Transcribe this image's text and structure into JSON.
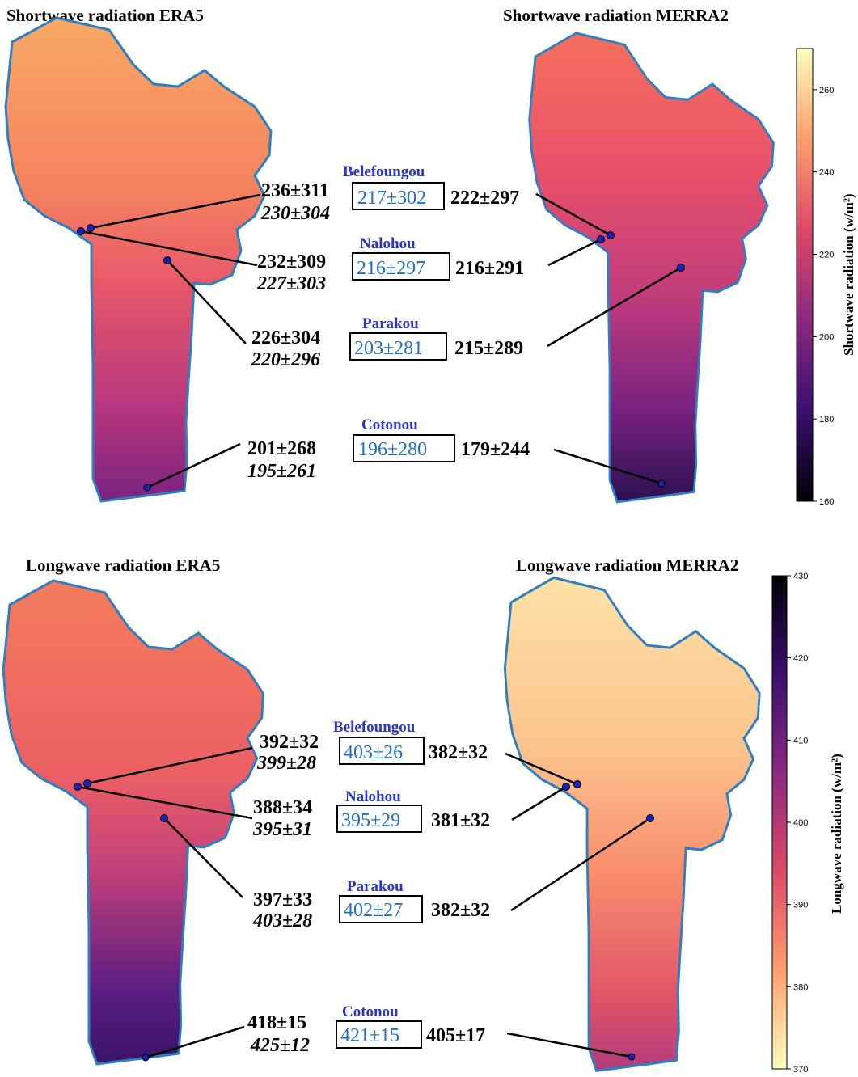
{
  "panels": {
    "sw_era5": {
      "title": "Shortwave radiation ERA5"
    },
    "sw_merra2": {
      "title": "Shortwave radiation MERRA2"
    },
    "lw_era5": {
      "title": "Longwave radiation ERA5"
    },
    "lw_merra2": {
      "title": "Longwave radiation MERRA2"
    }
  },
  "colorbars": {
    "shortwave": {
      "label": "Shortwave radiation (w/m²)",
      "min": 160,
      "max": 270,
      "ticks": [
        "260",
        "240",
        "220",
        "200",
        "180",
        "160"
      ]
    },
    "longwave": {
      "label": "Longwave radiation (w/m²)",
      "min": 370,
      "max": 430,
      "ticks": [
        "430",
        "420",
        "410",
        "400",
        "390",
        "380",
        "370"
      ]
    }
  },
  "colors": {
    "ramp": "magma",
    "border": "#2f7fc0",
    "station_marker": "#1a22b8",
    "obs_text": "#1f6fc6",
    "site_text": "#2a35c9"
  },
  "shortwave": {
    "sites": [
      {
        "name": "Belefoungou",
        "era5": "236±311",
        "era5_alt": "230±304",
        "obs": "217±302",
        "merra2": "222±297"
      },
      {
        "name": "Nalohou",
        "era5": "232±309",
        "era5_alt": "227±303",
        "obs": "216±297",
        "merra2": "216±291"
      },
      {
        "name": "Parakou",
        "era5": "226±304",
        "era5_alt": "220±296",
        "obs": "203±281",
        "merra2": "215±289"
      },
      {
        "name": "Cotonou",
        "era5": "201±268",
        "era5_alt": "195±261",
        "obs": "196±280",
        "merra2": "179±244"
      }
    ]
  },
  "longwave": {
    "sites": [
      {
        "name": "Belefoungou",
        "era5": "392±32",
        "era5_alt": "399±28",
        "obs": "403±26",
        "merra2": "382±32"
      },
      {
        "name": "Nalohou",
        "era5": "388±34",
        "era5_alt": "395±31",
        "obs": "395±29",
        "merra2": "381±32"
      },
      {
        "name": "Parakou",
        "era5": "397±33",
        "era5_alt": "403±28",
        "obs": "402±27",
        "merra2": "382±32"
      },
      {
        "name": "Cotonou",
        "era5": "418±15",
        "era5_alt": "425±12",
        "obs": "421±15",
        "merra2": "405±17"
      }
    ]
  }
}
